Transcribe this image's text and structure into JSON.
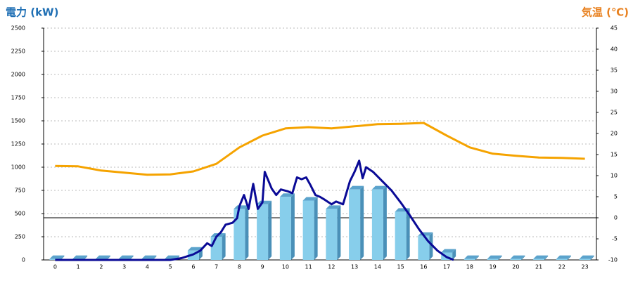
{
  "chart_data": {
    "type": "combo",
    "left_axis_label": "電力 (kW)",
    "right_axis_label": "気温 (℃)",
    "left_label_color": "#1f6fb4",
    "right_label_color": "#e8801e",
    "categories": [
      "0",
      "1",
      "2",
      "3",
      "4",
      "5",
      "6",
      "7",
      "8",
      "9",
      "10",
      "11",
      "12",
      "13",
      "14",
      "15",
      "16",
      "17",
      "18",
      "19",
      "20",
      "21",
      "22",
      "23"
    ],
    "ylim": [
      0,
      2500
    ],
    "yticks": [
      0,
      250,
      500,
      750,
      1000,
      1250,
      1500,
      1750,
      2000,
      2250,
      2500
    ],
    "y2lim": [
      -10,
      45
    ],
    "y2ticks": [
      -10,
      -5,
      0,
      5,
      10,
      15,
      20,
      25,
      30,
      35,
      40,
      45
    ],
    "grid": true,
    "y2_zero_line": true,
    "series": [
      {
        "type": "bar",
        "color": "#87ceeb",
        "values": [
          10,
          10,
          10,
          10,
          10,
          10,
          100,
          250,
          550,
          600,
          680,
          640,
          550,
          760,
          760,
          520,
          260,
          80,
          10,
          10,
          10,
          10,
          10,
          10
        ]
      },
      {
        "type": "line",
        "axis": "y2",
        "color": "#f5a300",
        "values": [
          12.3,
          12.2,
          11.2,
          10.7,
          10.2,
          10.3,
          11,
          12.8,
          16.7,
          19.5,
          21.2,
          21.5,
          21.2,
          21.7,
          22.2,
          22.3,
          22.5,
          19.5,
          16.7,
          15.2,
          14.7,
          14.3,
          14.2,
          14
        ]
      },
      {
        "type": "line",
        "color": "#0a0a96",
        "x": [
          0,
          5,
          5.5,
          6,
          6.3,
          6.6,
          6.8,
          7,
          7.2,
          7.4,
          7.7,
          7.9,
          8,
          8.2,
          8.4,
          8.6,
          8.8,
          9,
          9.1,
          9.4,
          9.6,
          9.8,
          10.1,
          10.3,
          10.5,
          10.7,
          10.9,
          11.1,
          11.3,
          11.5,
          11.7,
          12,
          12.2,
          12.5,
          12.8,
          13,
          13.2,
          13.35,
          13.5,
          13.8,
          14.2,
          14.6,
          15,
          15.4,
          15.8,
          16.2,
          16.6,
          17,
          17.3
        ],
        "values": [
          0,
          0,
          20,
          60,
          100,
          180,
          150,
          250,
          300,
          380,
          400,
          450,
          580,
          700,
          550,
          820,
          550,
          620,
          950,
          770,
          700,
          760,
          740,
          720,
          890,
          870,
          890,
          800,
          700,
          680,
          650,
          600,
          630,
          600,
          850,
          950,
          1070,
          880,
          1000,
          950,
          850,
          750,
          620,
          480,
          330,
          200,
          100,
          30,
          0
        ]
      }
    ]
  }
}
